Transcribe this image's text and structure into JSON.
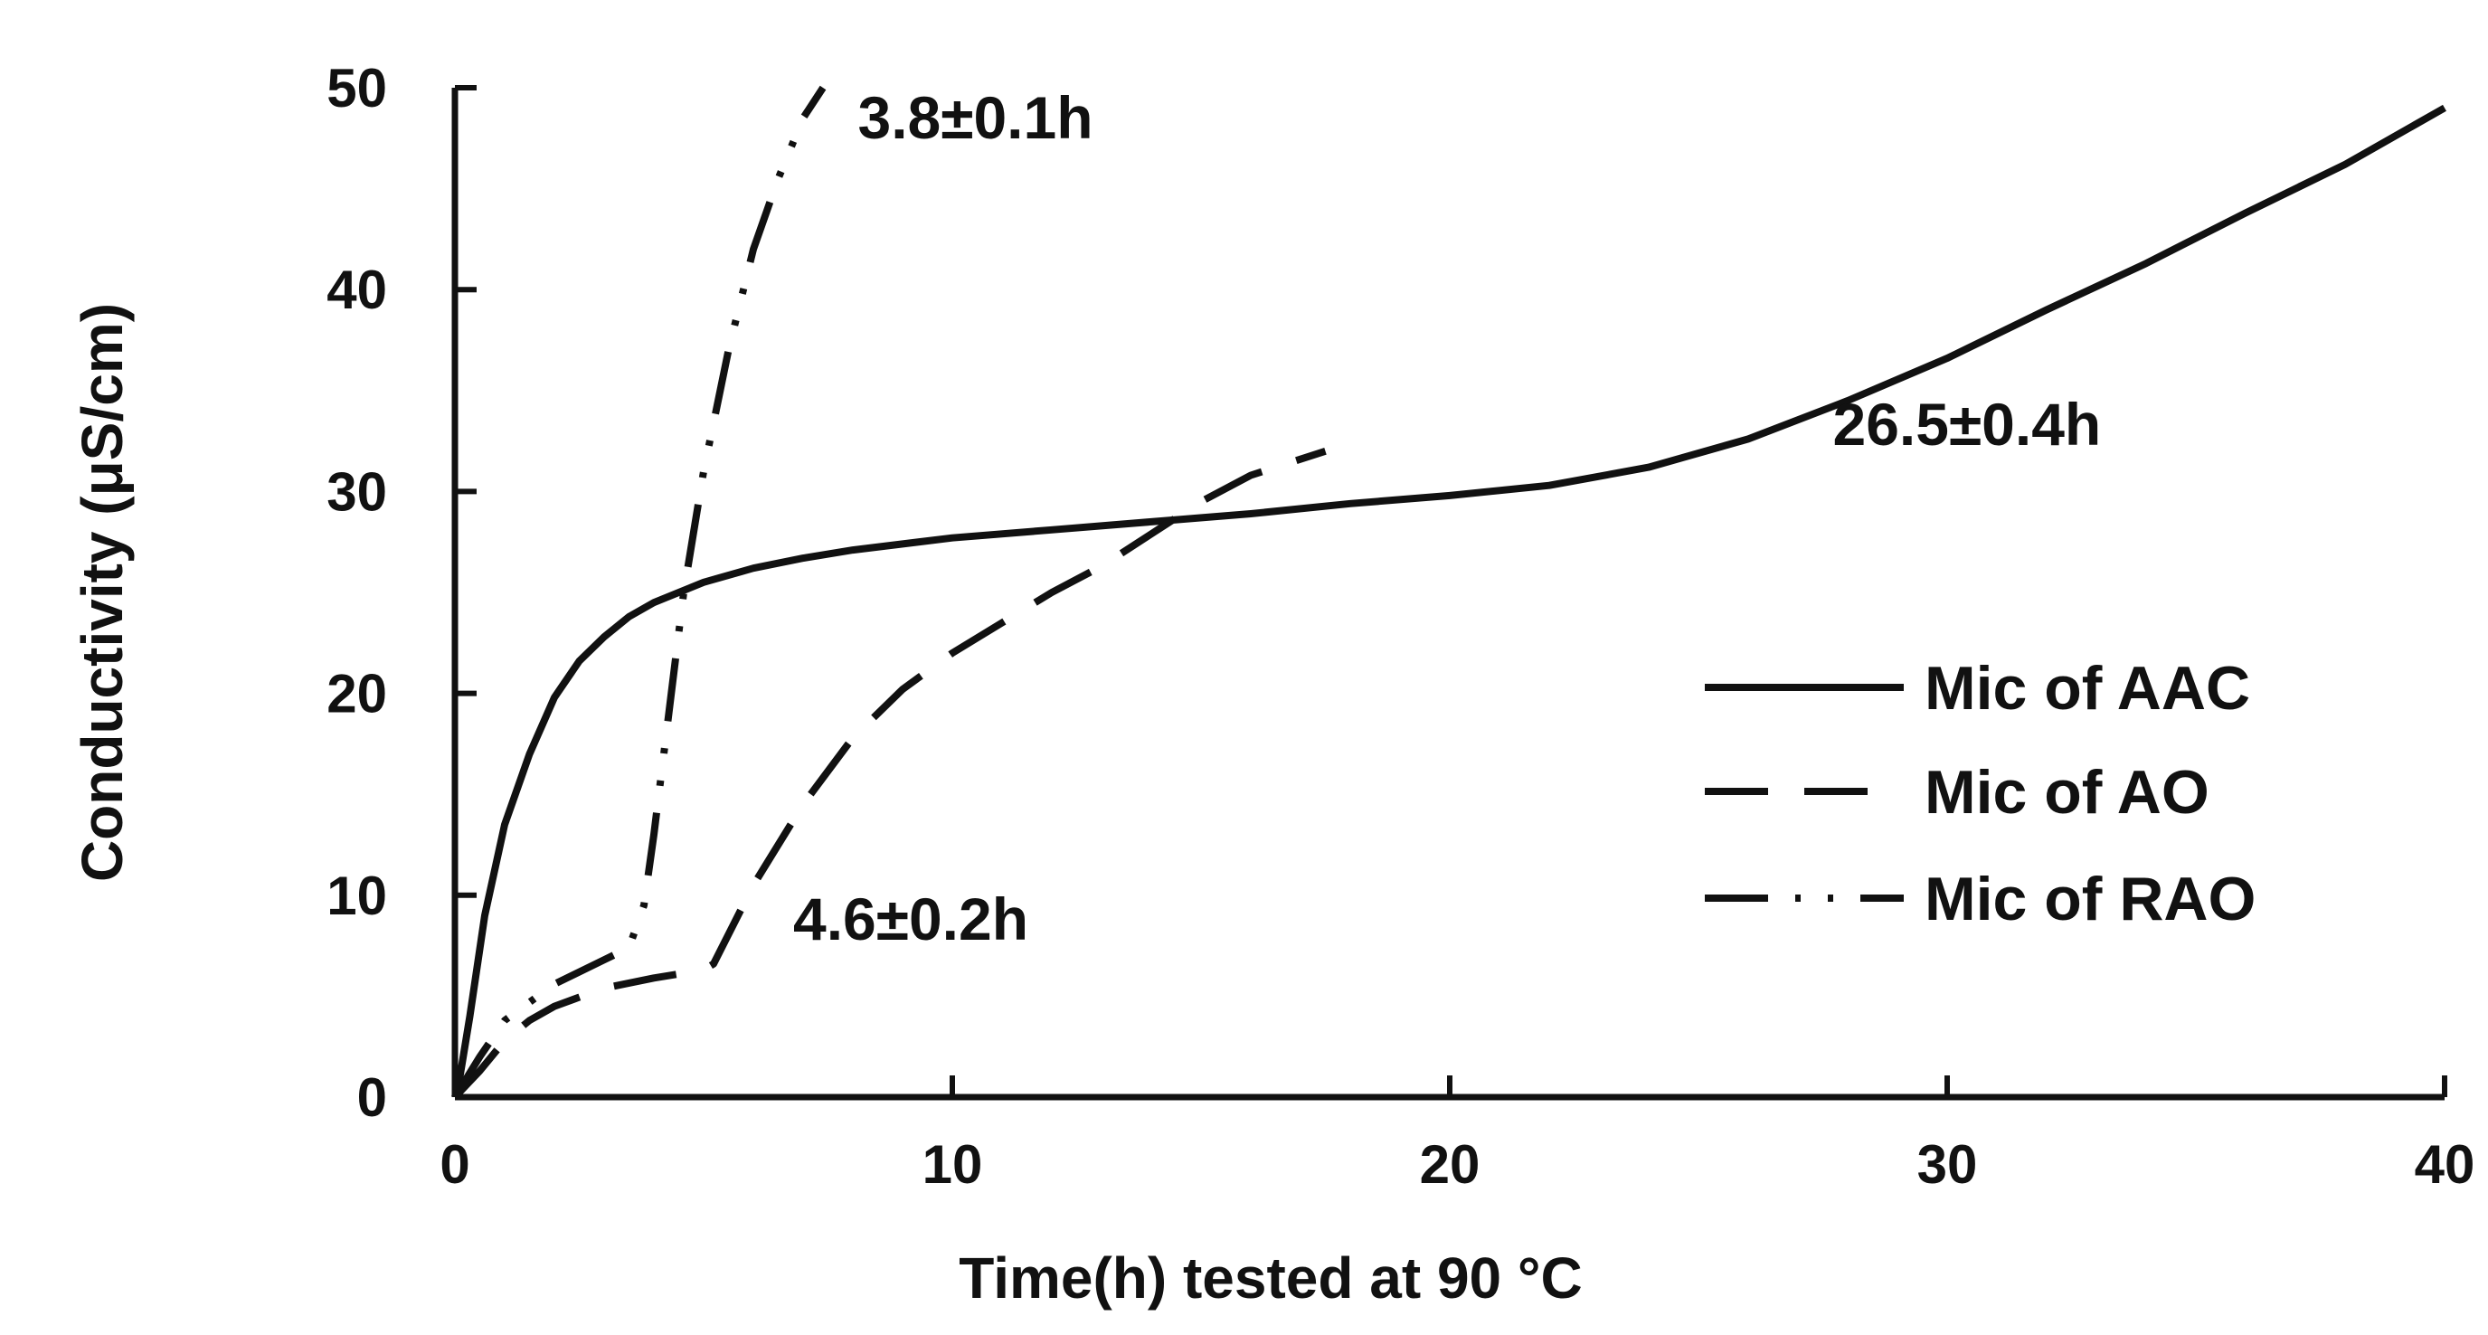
{
  "chart_data": {
    "type": "line",
    "title": "",
    "xlabel": "Time(h) tested at 90 °C",
    "ylabel": "Conductivity (μS/cm)",
    "xlim": [
      0,
      40
    ],
    "ylim": [
      0,
      50
    ],
    "xticks": [
      0,
      10,
      20,
      30,
      40
    ],
    "yticks": [
      0,
      10,
      20,
      30,
      40,
      50
    ],
    "grid": false,
    "legend_position": "right",
    "colors": {
      "line": "#111111",
      "text": "#111111",
      "background": "#ffffff"
    },
    "series": [
      {
        "name": "Mic of AAC",
        "style": "solid",
        "x": [
          0,
          0.1,
          0.3,
          0.6,
          1.0,
          1.5,
          2.0,
          2.5,
          3.0,
          3.5,
          4.0,
          5.0,
          6.0,
          7.0,
          8.0,
          10.0,
          12.0,
          14.0,
          16.0,
          18.0,
          20.0,
          22.0,
          24.0,
          25.0,
          26.0,
          28.0,
          30.0,
          32.0,
          34.0,
          36.0,
          38.0,
          40.0
        ],
        "y": [
          0,
          1.0,
          4.0,
          9.0,
          13.5,
          17.0,
          19.8,
          21.6,
          22.8,
          23.8,
          24.5,
          25.5,
          26.2,
          26.7,
          27.1,
          27.7,
          28.1,
          28.5,
          28.9,
          29.4,
          29.8,
          30.3,
          31.2,
          31.9,
          32.6,
          34.5,
          36.6,
          39.0,
          41.3,
          43.8,
          46.2,
          49.0
        ]
      },
      {
        "name": "Mic of AO",
        "style": "dashed",
        "x": [
          0,
          0.5,
          1.0,
          1.5,
          2.0,
          3.0,
          4.0,
          5.0,
          5.2,
          6.0,
          7.0,
          8.0,
          9.0,
          10.0,
          11.0,
          12.0,
          13.0,
          14.0,
          15.0,
          16.0,
          17.5
        ],
        "y": [
          0,
          1.3,
          2.8,
          3.8,
          4.5,
          5.4,
          5.9,
          6.3,
          6.6,
          10.5,
          14.5,
          17.8,
          20.2,
          22.0,
          23.5,
          25.0,
          26.3,
          27.9,
          29.5,
          30.8,
          32.0
        ]
      },
      {
        "name": "Mic of RAO",
        "style": "dash-dot-dot",
        "x": [
          0,
          0.5,
          1.0,
          2.0,
          3.0,
          3.5,
          3.8,
          4.0,
          4.3,
          4.6,
          5.0,
          5.5,
          6.0,
          6.5,
          7.0,
          7.4
        ],
        "y": [
          0,
          2.0,
          3.8,
          5.6,
          6.8,
          7.4,
          9.5,
          13.0,
          19.0,
          25.0,
          31.0,
          37.0,
          42.0,
          45.5,
          48.5,
          50.0
        ]
      }
    ],
    "annotations": [
      {
        "text": "3.8±0.1h",
        "x": 8.1,
        "y": 47.5
      },
      {
        "text": "26.5±0.4h",
        "x": 27.7,
        "y": 32.3
      },
      {
        "text": "4.6±0.2h",
        "x": 6.8,
        "y": 7.8
      }
    ]
  }
}
